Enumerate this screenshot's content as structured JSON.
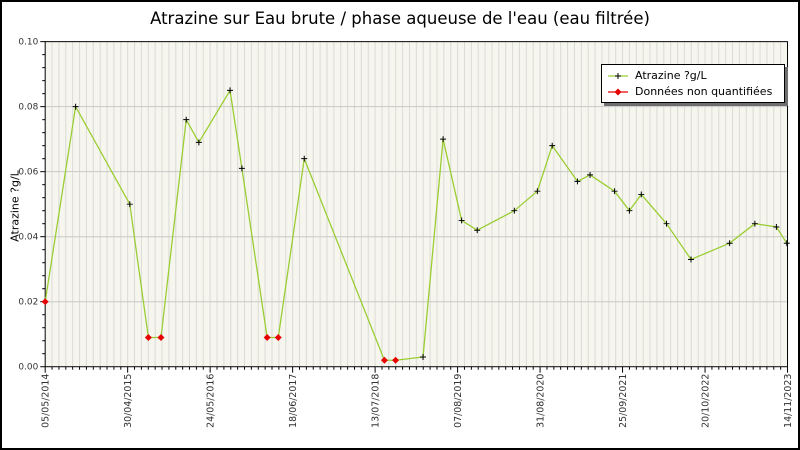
{
  "chart_data": {
    "type": "line",
    "title": "Atrazine sur Eau brute / phase aqueuse de l'eau (eau filtrée)",
    "xlabel": "",
    "ylabel": "Atrazine ?g/L",
    "ylim": [
      0.0,
      0.1
    ],
    "y_tick_labels": [
      "0.00",
      "0.02",
      "0.04",
      "0.06",
      "0.08",
      "0.10"
    ],
    "y_major_step": 0.02,
    "y_minor_step": 0.004,
    "x_tick_labels": [
      "05/05/2014",
      "30/04/2015",
      "24/05/2016",
      "18/06/2017",
      "13/07/2018",
      "07/08/2019",
      "31/08/2020",
      "25/09/2021",
      "20/10/2022",
      "14/11/2023"
    ],
    "x_minor_divisions_per_major": 12,
    "grid": {
      "vertical_minor": true,
      "horizontal_major": true
    },
    "legend": [
      {
        "label": "Atrazine ?g/L",
        "marker": "plus",
        "line_color": "#9ACD32"
      },
      {
        "label": "Données non quantifiées",
        "marker": "diamond",
        "line_color": "#E60000"
      }
    ],
    "legend_position": "top-right",
    "series": [
      {
        "name": "Atrazine ?g/L",
        "note": "x is fractional position along the date axis (0 = 05/05/2014, 1 = 14/11/2023); v in ?g/L; q=false means 'Données non quantifiées' (red diamond)",
        "points": [
          {
            "x": 0.0,
            "v": 0.02,
            "q": false
          },
          {
            "x": 0.041,
            "v": 0.08,
            "q": true
          },
          {
            "x": 0.114,
            "v": 0.05,
            "q": true
          },
          {
            "x": 0.139,
            "v": 0.009,
            "q": false
          },
          {
            "x": 0.156,
            "v": 0.009,
            "q": false
          },
          {
            "x": 0.19,
            "v": 0.076,
            "q": true
          },
          {
            "x": 0.207,
            "v": 0.069,
            "q": true
          },
          {
            "x": 0.249,
            "v": 0.085,
            "q": true
          },
          {
            "x": 0.265,
            "v": 0.061,
            "q": true
          },
          {
            "x": 0.299,
            "v": 0.009,
            "q": false
          },
          {
            "x": 0.314,
            "v": 0.009,
            "q": false
          },
          {
            "x": 0.349,
            "v": 0.064,
            "q": true
          },
          {
            "x": 0.457,
            "v": 0.002,
            "q": false
          },
          {
            "x": 0.472,
            "v": 0.002,
            "q": false
          },
          {
            "x": 0.509,
            "v": 0.003,
            "q": true
          },
          {
            "x": 0.536,
            "v": 0.07,
            "q": true
          },
          {
            "x": 0.561,
            "v": 0.045,
            "q": true
          },
          {
            "x": 0.582,
            "v": 0.042,
            "q": true
          },
          {
            "x": 0.632,
            "v": 0.048,
            "q": true
          },
          {
            "x": 0.663,
            "v": 0.054,
            "q": true
          },
          {
            "x": 0.683,
            "v": 0.068,
            "q": true
          },
          {
            "x": 0.717,
            "v": 0.057,
            "q": true
          },
          {
            "x": 0.734,
            "v": 0.059,
            "q": true
          },
          {
            "x": 0.767,
            "v": 0.054,
            "q": true
          },
          {
            "x": 0.787,
            "v": 0.048,
            "q": true
          },
          {
            "x": 0.803,
            "v": 0.053,
            "q": true
          },
          {
            "x": 0.837,
            "v": 0.044,
            "q": true
          },
          {
            "x": 0.87,
            "v": 0.033,
            "q": true
          },
          {
            "x": 0.922,
            "v": 0.038,
            "q": true
          },
          {
            "x": 0.956,
            "v": 0.044,
            "q": true
          },
          {
            "x": 0.985,
            "v": 0.043,
            "q": true
          },
          {
            "x": 0.999,
            "v": 0.038,
            "q": true
          }
        ]
      }
    ],
    "colors": {
      "line": "#9ACD32",
      "marker": "#000000",
      "unquantified": "#E60000",
      "plot_bg": "#F6F6EF",
      "grid_minor": "#DBDBD5",
      "grid_major": "#C8C8C8",
      "axis": "#000000",
      "tick_text": "#333333",
      "legend_shadow": "#6E6E6E"
    }
  }
}
